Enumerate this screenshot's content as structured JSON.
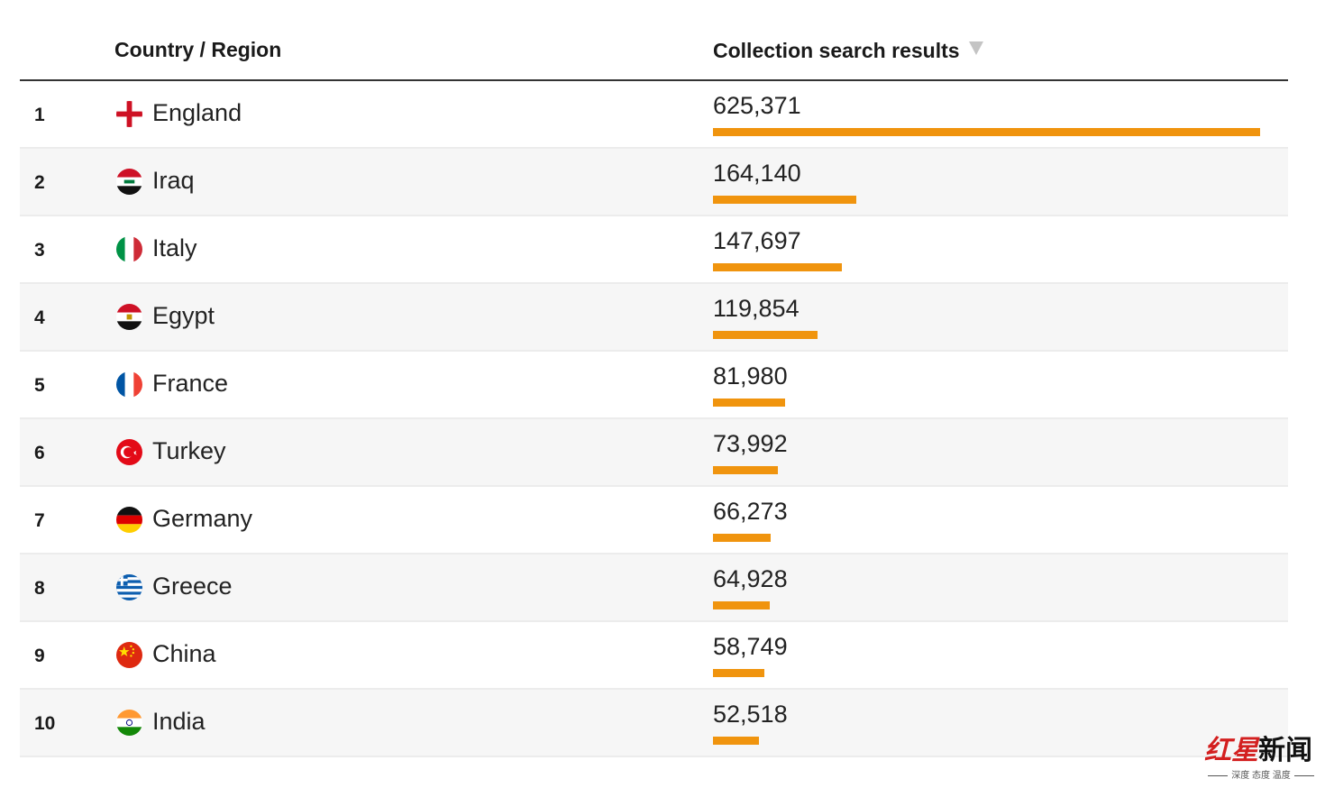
{
  "header": {
    "country_label": "Country / Region",
    "results_label": "Collection search results"
  },
  "rows": [
    {
      "rank": "1",
      "country": "England",
      "value": "625,371",
      "flag": "england-flag-icon"
    },
    {
      "rank": "2",
      "country": "Iraq",
      "value": "164,140",
      "flag": "iraq-flag-icon"
    },
    {
      "rank": "3",
      "country": "Italy",
      "value": "147,697",
      "flag": "italy-flag-icon"
    },
    {
      "rank": "4",
      "country": "Egypt",
      "value": "119,854",
      "flag": "egypt-flag-icon"
    },
    {
      "rank": "5",
      "country": "France",
      "value": "81,980",
      "flag": "france-flag-icon"
    },
    {
      "rank": "6",
      "country": "Turkey",
      "value": "73,992",
      "flag": "turkey-flag-icon"
    },
    {
      "rank": "7",
      "country": "Germany",
      "value": "66,273",
      "flag": "germany-flag-icon"
    },
    {
      "rank": "8",
      "country": "Greece",
      "value": "64,928",
      "flag": "greece-flag-icon"
    },
    {
      "rank": "9",
      "country": "China",
      "value": "58,749",
      "flag": "china-flag-icon"
    },
    {
      "rank": "10",
      "country": "India",
      "value": "52,518",
      "flag": "india-flag-icon"
    }
  ],
  "chart_data": {
    "type": "bar",
    "categories": [
      "England",
      "Iraq",
      "Italy",
      "Egypt",
      "France",
      "Turkey",
      "Germany",
      "Greece",
      "China",
      "India"
    ],
    "values": [
      625371,
      164140,
      147697,
      119854,
      81980,
      73992,
      66273,
      64928,
      58749,
      52518
    ],
    "title": "",
    "xlabel": "",
    "ylabel": "Collection search results",
    "ylim": [
      0,
      625371
    ],
    "orientation": "horizontal",
    "grid": false,
    "legend": "none",
    "bar_color": "#f0940e"
  },
  "watermark": {
    "text_red": "红星",
    "text_black": "新闻",
    "tagline": "深度 态度 温度"
  }
}
